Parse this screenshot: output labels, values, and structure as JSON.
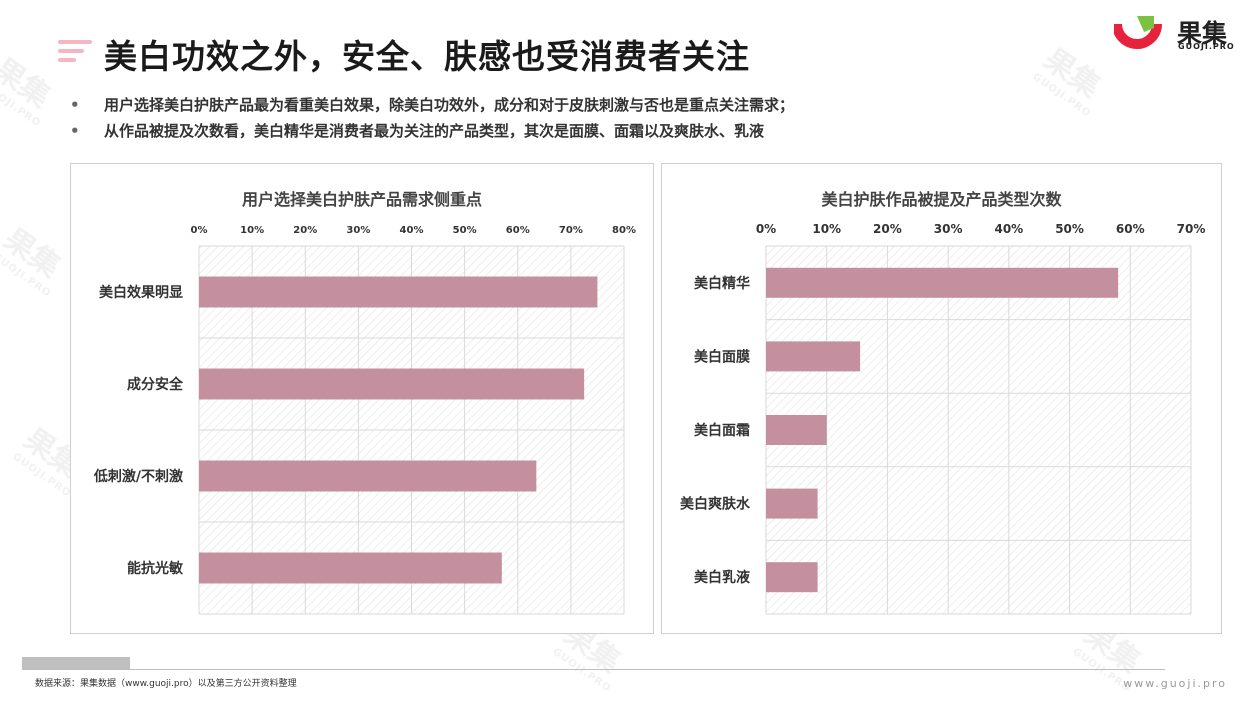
{
  "page": {
    "title": "美白功效之外，安全、肤感也受消费者关注",
    "bullets": [
      "用户选择美白护肤产品最为看重美白效果，除美白功效外，成分和对于皮肤刺激与否也是重点关注需求；",
      "从作品被提及次数看，美白精华是消费者最为关注的产品类型，其次是面膜、面霜以及爽肤水、乳液"
    ]
  },
  "logo": {
    "name": "果集",
    "sub": "GUOJI.PRO",
    "icon": "guoji-logo-icon",
    "colors": [
      "#e6223c",
      "#7cc242"
    ]
  },
  "watermark": {
    "text": "果集",
    "sub": "GUOJI.PRO"
  },
  "footer": {
    "source": "数据来源：果集数据（www.guoji.pro）以及第三方公开资料整理",
    "site": "www.guoji.pro"
  },
  "chart_data": [
    {
      "type": "bar",
      "orientation": "horizontal",
      "title": "用户选择美白护肤产品需求侧重点",
      "categories": [
        "美白效果明显",
        "成分安全",
        "低刺激/不刺激",
        "能抗光敏"
      ],
      "values": [
        75,
        72.5,
        63.5,
        57
      ],
      "xlim": [
        0,
        80
      ],
      "xticks": [
        "0%",
        "10%",
        "20%",
        "30%",
        "40%",
        "50%",
        "60%",
        "70%",
        "80%"
      ],
      "tick_step": 10,
      "axis_position": "top",
      "bar_color": "#c4909f",
      "grid": true
    },
    {
      "type": "bar",
      "orientation": "horizontal",
      "title": "美白护肤作品被提及产品类型次数",
      "categories": [
        "美白精华",
        "美白面膜",
        "美白面霜",
        "美白爽肤水",
        "美白乳液"
      ],
      "values": [
        58,
        15.5,
        10,
        8.5,
        8.5
      ],
      "xlim": [
        0,
        70
      ],
      "xticks": [
        "0%",
        "10%",
        "20%",
        "30%",
        "40%",
        "50%",
        "60%",
        "70%"
      ],
      "tick_step": 10,
      "axis_position": "top",
      "bar_color": "#c4909f",
      "grid": true
    }
  ]
}
